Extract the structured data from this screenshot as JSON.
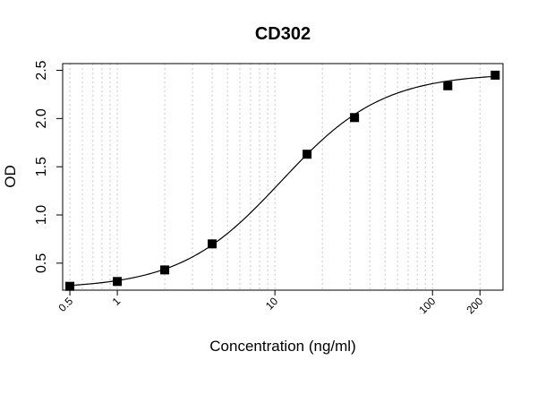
{
  "chart_data": {
    "type": "scatter",
    "title": "CD302",
    "xlabel": "Concentration (ng/ml)",
    "ylabel": "OD",
    "x_scale": "log",
    "xlim": [
      0.45,
      280
    ],
    "ylim": [
      0.22,
      2.57
    ],
    "grid": "vertical dotted at minor log ticks",
    "x_tick_labels": [
      "0.5",
      "1",
      "10",
      "100",
      "200"
    ],
    "x_ticks": [
      0.5,
      1,
      10,
      100,
      200
    ],
    "y_tick_labels": [
      "0.5",
      "1.0",
      "1.5",
      "2.0",
      "2.5"
    ],
    "y_ticks": [
      0.5,
      1.0,
      1.5,
      2.0,
      2.5
    ],
    "points": [
      {
        "x": 0.5,
        "y": 0.26
      },
      {
        "x": 1,
        "y": 0.31
      },
      {
        "x": 2,
        "y": 0.43
      },
      {
        "x": 4,
        "y": 0.7
      },
      {
        "x": 16,
        "y": 1.63
      },
      {
        "x": 32,
        "y": 2.01
      },
      {
        "x": 125,
        "y": 2.34
      },
      {
        "x": 250,
        "y": 2.45
      }
    ],
    "fit_curve": {
      "type": "4PL",
      "bottom": 0.235,
      "top": 2.47,
      "ec50": 11,
      "hill": 1.35
    }
  }
}
